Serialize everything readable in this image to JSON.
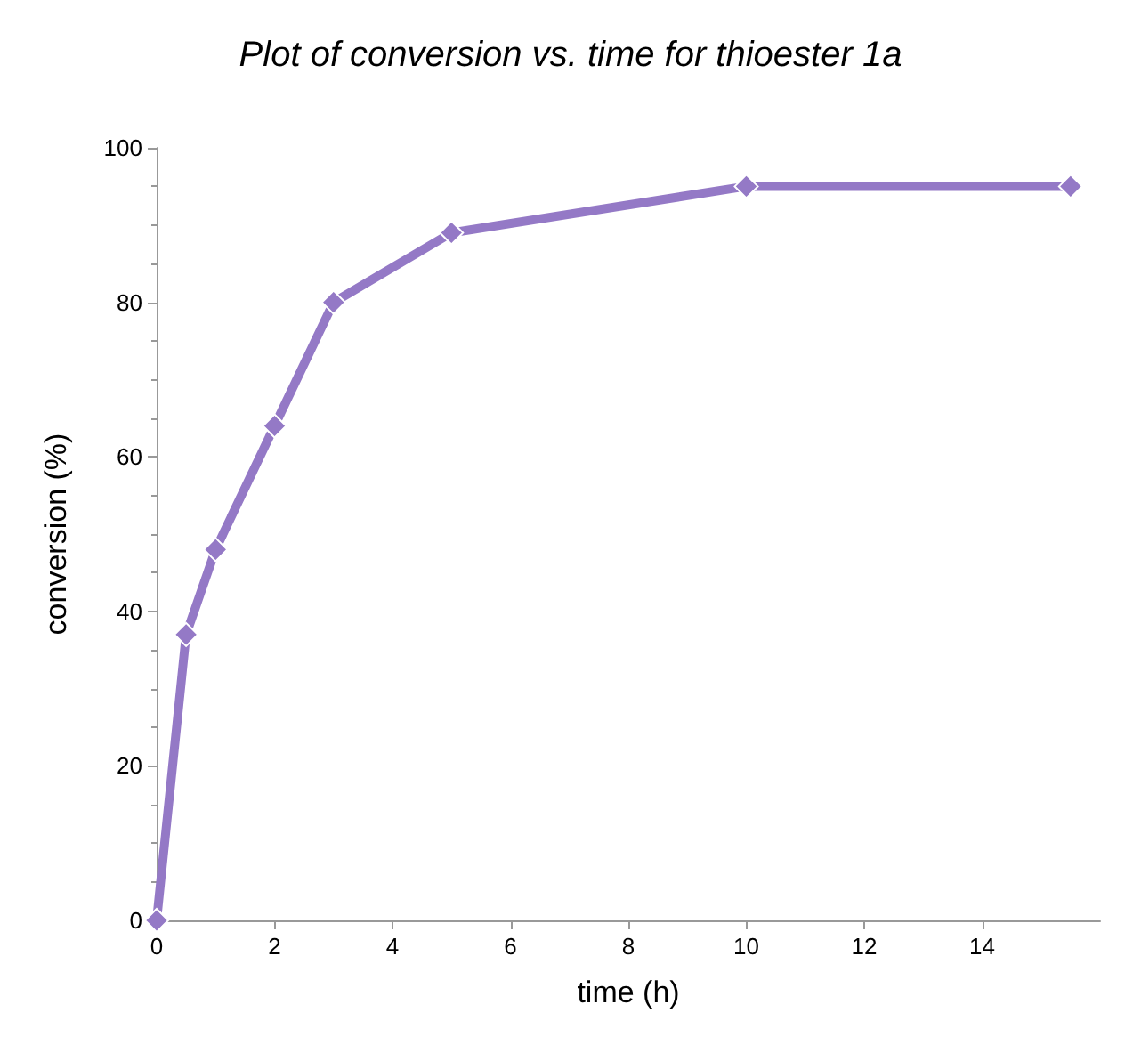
{
  "chart_data": {
    "type": "line",
    "title": "Plot of conversion vs. time for thioester 1a",
    "xlabel": "time (h)",
    "ylabel": "conversion (%)",
    "x": [
      0,
      0.5,
      1,
      2,
      3,
      5,
      10,
      15.5
    ],
    "series": [
      {
        "color": "#9479c6",
        "values": [
          0,
          37,
          48,
          64,
          80,
          89,
          95,
          95
        ]
      }
    ],
    "xlim": [
      0,
      16
    ],
    "xticks": [
      0,
      2,
      4,
      6,
      8,
      10,
      12,
      14
    ],
    "ylim": [
      0,
      100
    ],
    "yticks": [
      0,
      20,
      40,
      60,
      80,
      100
    ],
    "grid": false,
    "marker": "diamond",
    "line_style": "solid"
  }
}
